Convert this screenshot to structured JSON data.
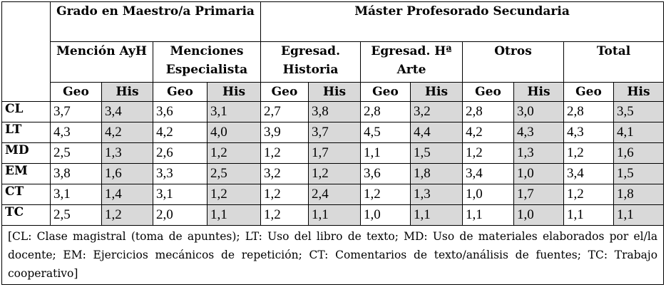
{
  "groups": [
    {
      "label": "Grado en Maestro/a Primaria"
    },
    {
      "label": "Máster Profesorado Secundaria"
    }
  ],
  "subgroups": [
    "Mención AyH",
    "Menciones Especialista",
    "Egresad. Historia",
    "Egresad. Hª Arte",
    "Otros",
    "Total"
  ],
  "columns": [
    "Geo",
    "His",
    "Geo",
    "His",
    "Geo",
    "His",
    "Geo",
    "His",
    "Geo",
    "His",
    "Geo",
    "His"
  ],
  "rows": [
    {
      "label": "CL",
      "values": [
        "3,7",
        "3,4",
        "3,6",
        "3,1",
        "2,7",
        "3,8",
        "2,8",
        "3,2",
        "2,8",
        "3,0",
        "2,8",
        "3,5"
      ]
    },
    {
      "label": "LT",
      "values": [
        "4,3",
        "4,2",
        "4,2",
        "4,0",
        "3,9",
        "3,7",
        "4,5",
        "4,4",
        "4,2",
        "4,3",
        "4,3",
        "4,1"
      ]
    },
    {
      "label": "MD",
      "values": [
        "2,5",
        "1,3",
        "2,6",
        "1,2",
        "1,2",
        "1,7",
        "1,1",
        "1,5",
        "1,2",
        "1,3",
        "1,2",
        "1,6"
      ]
    },
    {
      "label": "EM",
      "values": [
        "3,8",
        "1,6",
        "3,3",
        "2,5",
        "3,2",
        "1,2",
        "3,6",
        "1,8",
        "3,4",
        "1,0",
        "3,4",
        "1,5"
      ]
    },
    {
      "label": "CT",
      "values": [
        "3,1",
        "1,4",
        "3,1",
        "1,2",
        "1,2",
        "2,4",
        "1,2",
        "1,3",
        "1,0",
        "1,7",
        "1,2",
        "1,8"
      ]
    },
    {
      "label": "TC",
      "values": [
        "2,5",
        "1,2",
        "2,0",
        "1,1",
        "1,2",
        "1,1",
        "1,0",
        "1,1",
        "1,1",
        "1,0",
        "1,1",
        "1,1"
      ]
    }
  ],
  "footnote": "[CL: Clase magistral (toma de apuntes); LT: Uso del libro de texto; MD: Uso de materiales elaborados por el/la docente; EM: Ejercicios mecánicos de repetición; CT: Comentarios de texto/análisis de fuentes; TC: Trabajo cooperativo]",
  "colors": {
    "shade": "#d9d9d9"
  }
}
